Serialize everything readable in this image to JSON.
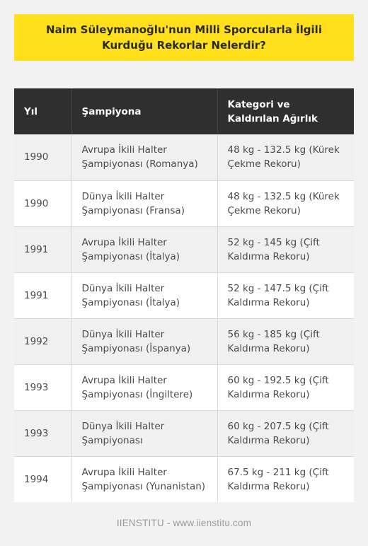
{
  "title": "Naim Süleymanoğlu'nun Milli Sporcularla İlgili Kurduğu Rekorlar Nelerdir?",
  "table": {
    "headers": [
      "Yıl",
      "Şampiyona",
      "Kategori ve Kaldırılan Ağırlık"
    ],
    "rows": [
      [
        "1990",
        "Avrupa İkili Halter Şampiyonası (Romanya)",
        "48 kg - 132.5 kg (Kürek Çekme Rekoru)"
      ],
      [
        "1990",
        "Dünya İkili Halter Şampiyonası (Fransa)",
        "48 kg - 132.5 kg (Kürek Çekme Rekoru)"
      ],
      [
        "1991",
        "Avrupa İkili Halter Şampiyonası (İtalya)",
        "52 kg - 145 kg (Çift Kaldırma Rekoru)"
      ],
      [
        "1991",
        "Dünya İkili Halter Şampiyonası (İtalya)",
        "52 kg - 147.5 kg (Çift Kaldırma Rekoru)"
      ],
      [
        "1992",
        "Dünya İkili Halter Şampiyonası (İspanya)",
        "56 kg - 185 kg (Çift Kaldırma Rekoru)"
      ],
      [
        "1993",
        "Avrupa İkili Halter Şampiyonası (İngiltere)",
        "60 kg - 192.5 kg (Çift Kaldırma Rekoru)"
      ],
      [
        "1993",
        "Dünya İkili Halter Şampiyonası",
        "60 kg - 207.5 kg (Çift Kaldırma Rekoru)"
      ],
      [
        "1994",
        "Avrupa İkili Halter Şampiyonası (Yunanistan)",
        "67.5 kg - 211 kg (Çift Kaldırma Rekoru)"
      ]
    ]
  },
  "footer": "IIENSTITU - www.iienstitu.com",
  "colors": {
    "banner": "#ffe01b",
    "header": "#2f2f2f",
    "background": "#f2f2f2"
  }
}
